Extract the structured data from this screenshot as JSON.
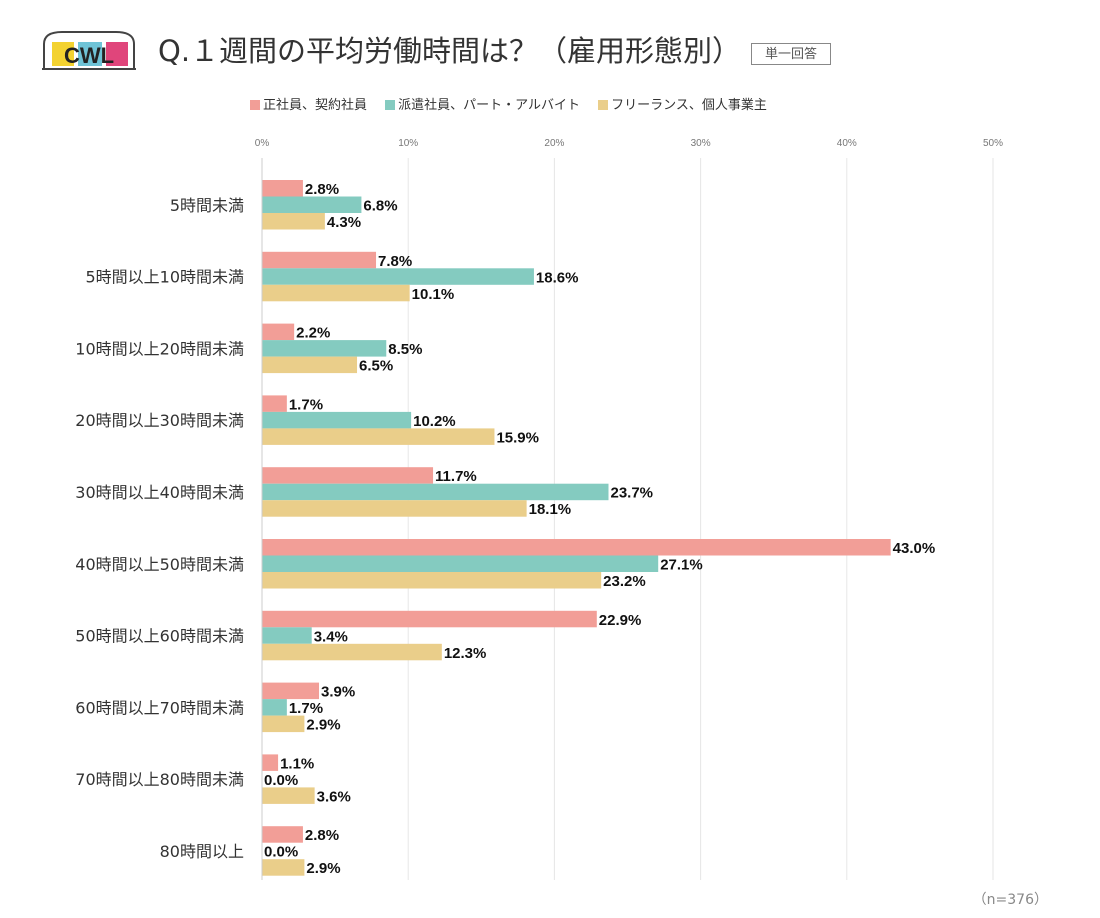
{
  "header": {
    "logo_text": "CWL",
    "title": "Q.１週間の平均労働時間は？（雇用形態別）",
    "badge": "単一回答"
  },
  "footer": {
    "n_label": "（n=376）"
  },
  "colors": {
    "series_0": "#F29E97",
    "series_1": "#84CBC0",
    "series_2": "#EACE8A",
    "grid": "#E6E6E6",
    "label": "#111111"
  },
  "chart_data": {
    "type": "bar",
    "orientation": "horizontal",
    "title": "Q.１週間の平均労働時間は？（雇用形態別）",
    "xlim": [
      0,
      50
    ],
    "xticks": [
      "0%",
      "10%",
      "20%",
      "30%",
      "40%",
      "50%"
    ],
    "categories": [
      "5時間未満",
      "5時間以上10時間未満",
      "10時間以上20時間未満",
      "20時間以上30時間未満",
      "30時間以上40時間未満",
      "40時間以上50時間未満",
      "50時間以上60時間未満",
      "60時間以上70時間未満",
      "70時間以上80時間未満",
      "80時間以上"
    ],
    "series": [
      {
        "name": "正社員、契約社員",
        "values": [
          2.8,
          7.8,
          2.2,
          1.7,
          11.7,
          43.0,
          22.9,
          3.9,
          1.1,
          2.8
        ]
      },
      {
        "name": "派遣社員、パート・アルバイト",
        "values": [
          6.8,
          18.6,
          8.5,
          10.2,
          23.7,
          27.1,
          3.4,
          1.7,
          0.0,
          0.0
        ]
      },
      {
        "name": "フリーランス、個人事業主",
        "values": [
          4.3,
          10.1,
          6.5,
          15.9,
          18.1,
          23.2,
          12.3,
          2.9,
          3.6,
          2.9
        ]
      }
    ],
    "value_suffix": "%",
    "legend_position": "top"
  }
}
